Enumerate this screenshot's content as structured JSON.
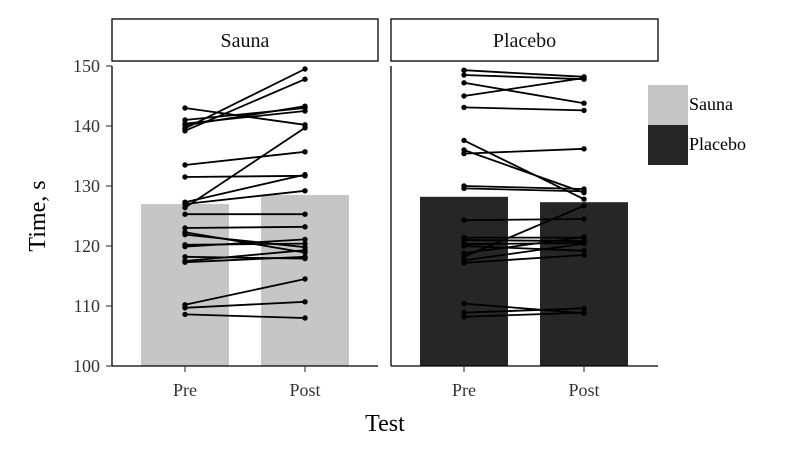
{
  "chart_data": {
    "type": "bar",
    "facets": [
      {
        "label": "Sauna",
        "color": "#c6c6c6",
        "categories": [
          "Pre",
          "Post"
        ],
        "values": [
          127,
          128.5
        ],
        "paired_points": [
          [
            143,
            140.2
          ],
          [
            141,
            143
          ],
          [
            140.4,
            142.5
          ],
          [
            140.1,
            143.3
          ],
          [
            139.6,
            149.5
          ],
          [
            139.2,
            147.8
          ],
          [
            133.5,
            135.7
          ],
          [
            131.5,
            131.7
          ],
          [
            127.3,
            131.9
          ],
          [
            127,
            129.2
          ],
          [
            126.4,
            139.7
          ],
          [
            125.3,
            125.3
          ],
          [
            123,
            123.2
          ],
          [
            122.3,
            118.9
          ],
          [
            121.9,
            119.8
          ],
          [
            120.2,
            120.4
          ],
          [
            119.9,
            121.1
          ],
          [
            118.2,
            117.9
          ],
          [
            117.5,
            119.3
          ],
          [
            117.3,
            118.2
          ],
          [
            110.2,
            114.5
          ],
          [
            109.7,
            110.7
          ],
          [
            108.6,
            108
          ]
        ]
      },
      {
        "label": "Placebo",
        "color": "#262626",
        "categories": [
          "Pre",
          "Post"
        ],
        "values": [
          128.2,
          127.3
        ],
        "paired_points": [
          [
            149.3,
            148.2
          ],
          [
            148.5,
            147.8
          ],
          [
            147.2,
            143.8
          ],
          [
            145,
            148
          ],
          [
            143.1,
            142.6
          ],
          [
            137.6,
            127.8
          ],
          [
            136,
            128.9
          ],
          [
            135.4,
            136.2
          ],
          [
            130,
            129.5
          ],
          [
            129.6,
            129.1
          ],
          [
            124.3,
            124.5
          ],
          [
            121.4,
            121.4
          ],
          [
            121,
            120.8
          ],
          [
            120.3,
            120.5
          ],
          [
            120,
            119.2
          ],
          [
            118.8,
            121.5
          ],
          [
            118.2,
            126.7
          ],
          [
            117.6,
            120.4
          ],
          [
            117.2,
            118.5
          ],
          [
            110.4,
            108.8
          ],
          [
            108.9,
            109.6
          ],
          [
            108.2,
            108.9
          ]
        ]
      }
    ],
    "xlabel": "Test",
    "ylabel": "Time, s",
    "ylim": [
      100,
      150
    ],
    "yticks": [
      100,
      110,
      120,
      130,
      140,
      150
    ],
    "legend": {
      "entries": [
        {
          "label": "Sauna",
          "color": "#c6c6c6"
        },
        {
          "label": "Placebo",
          "color": "#262626"
        }
      ],
      "position": "right"
    }
  }
}
